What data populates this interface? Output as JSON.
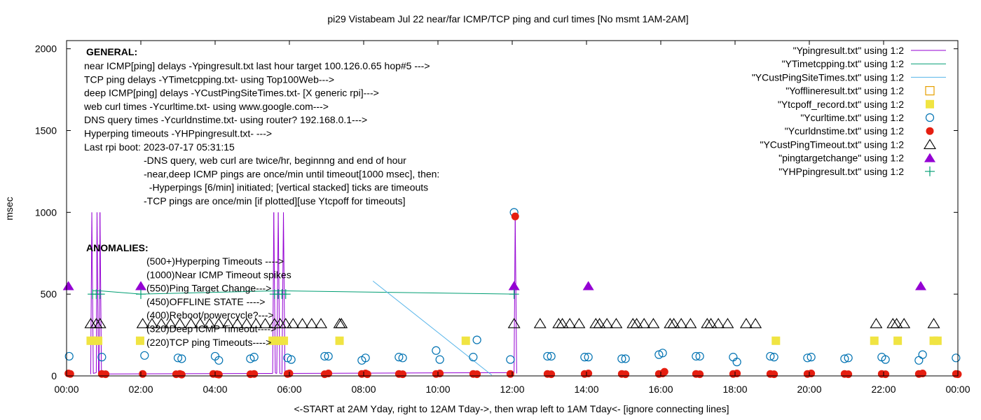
{
  "chart_data": {
    "type": "line",
    "title": "pi29 Vistabeam Jul 22  near/far ICMP/TCP ping and curl times [No msmt 1AM-2AM]",
    "xlabel": "<-START at 2AM Yday, right to 12AM Tday->, then wrap left to 1AM Tday<- [ignore connecting lines]",
    "ylabel": "msec",
    "xlim": [
      0,
      24
    ],
    "ylim": [
      0,
      2050
    ],
    "x_ticks": [
      {
        "v": 0,
        "label": "00:00"
      },
      {
        "v": 2,
        "label": "02:00"
      },
      {
        "v": 4,
        "label": "04:00"
      },
      {
        "v": 6,
        "label": "06:00"
      },
      {
        "v": 8,
        "label": "08:00"
      },
      {
        "v": 10,
        "label": "10:00"
      },
      {
        "v": 12,
        "label": "12:00"
      },
      {
        "v": 14,
        "label": "14:00"
      },
      {
        "v": 16,
        "label": "16:00"
      },
      {
        "v": 18,
        "label": "18:00"
      },
      {
        "v": 20,
        "label": "20:00"
      },
      {
        "v": 22,
        "label": "22:00"
      },
      {
        "v": 24,
        "label": "00:00"
      }
    ],
    "y_ticks": [
      {
        "v": 0,
        "label": "0"
      },
      {
        "v": 500,
        "label": "500"
      },
      {
        "v": 1000,
        "label": "1000"
      },
      {
        "v": 1500,
        "label": "1500"
      },
      {
        "v": 2000,
        "label": "2000"
      }
    ],
    "grid": false,
    "legend_position": "top-right",
    "series": [
      {
        "name": "\"Ypingresult.txt\" using 1:2",
        "style": "line",
        "color": "#9400d3",
        "points": [
          [
            0.65,
            10
          ],
          [
            0.68,
            1000
          ],
          [
            0.72,
            15
          ],
          [
            0.8,
            20
          ],
          [
            0.82,
            1000
          ],
          [
            0.86,
            15
          ],
          [
            0.88,
            20
          ],
          [
            0.9,
            1000
          ],
          [
            0.94,
            12
          ],
          [
            5.55,
            15
          ],
          [
            5.58,
            1000
          ],
          [
            5.62,
            18
          ],
          [
            5.66,
            15
          ],
          [
            5.7,
            1000
          ],
          [
            5.74,
            15
          ],
          [
            5.8,
            12
          ],
          [
            5.84,
            1000
          ],
          [
            5.88,
            15
          ],
          [
            12.05,
            20
          ],
          [
            12.08,
            970
          ],
          [
            12.12,
            15
          ]
        ]
      },
      {
        "name": "\"YTimetcpping.txt\" using 1:2",
        "style": "line",
        "color": "#009e73",
        "points": [
          [
            0.7,
            520
          ],
          [
            0.9,
            520
          ],
          [
            5.65,
            520
          ],
          [
            5.85,
            520
          ],
          [
            2.0,
            500
          ],
          [
            12.05,
            500
          ]
        ]
      },
      {
        "name": "\"YCustPingSiteTimes.txt\" using 1:2",
        "style": "line",
        "color": "#56b4e9",
        "points": [
          [
            8.25,
            580
          ],
          [
            11.45,
            5
          ]
        ]
      },
      {
        "name": "\"Yofflineresult.txt\" using 1:2",
        "style": "marker",
        "marker": "open-square",
        "color": "#e69f00",
        "points": []
      },
      {
        "name": "\"Ytcpoff_record.txt\" using 1:2",
        "style": "marker",
        "marker": "filled-square",
        "color": "#f0e442",
        "points": [
          [
            0.65,
            215
          ],
          [
            0.75,
            215
          ],
          [
            0.85,
            215
          ],
          [
            1.98,
            215
          ],
          [
            5.55,
            215
          ],
          [
            5.65,
            215
          ],
          [
            5.75,
            215
          ],
          [
            5.85,
            215
          ],
          [
            7.35,
            215
          ],
          [
            10.75,
            215
          ],
          [
            19.1,
            215
          ],
          [
            21.75,
            215
          ],
          [
            22.38,
            215
          ],
          [
            23.35,
            215
          ],
          [
            23.45,
            215
          ]
        ]
      },
      {
        "name": "\"Ycurltime.txt\" using 1:2",
        "style": "marker",
        "marker": "open-circle",
        "color": "#0072b2",
        "points": [
          [
            0.07,
            120
          ],
          [
            0.95,
            115
          ],
          [
            2.1,
            125
          ],
          [
            3.0,
            110
          ],
          [
            3.1,
            105
          ],
          [
            4.0,
            120
          ],
          [
            4.1,
            95
          ],
          [
            4.95,
            105
          ],
          [
            5.05,
            115
          ],
          [
            5.95,
            110
          ],
          [
            6.05,
            100
          ],
          [
            6.95,
            120
          ],
          [
            7.05,
            120
          ],
          [
            7.95,
            95
          ],
          [
            8.05,
            110
          ],
          [
            8.95,
            115
          ],
          [
            9.05,
            110
          ],
          [
            9.95,
            155
          ],
          [
            10.05,
            100
          ],
          [
            10.95,
            115
          ],
          [
            11.05,
            220
          ],
          [
            11.95,
            100
          ],
          [
            12.05,
            1000
          ],
          [
            12.95,
            120
          ],
          [
            13.05,
            120
          ],
          [
            13.95,
            115
          ],
          [
            14.05,
            115
          ],
          [
            14.95,
            105
          ],
          [
            15.05,
            105
          ],
          [
            15.95,
            130
          ],
          [
            16.05,
            140
          ],
          [
            16.95,
            120
          ],
          [
            17.05,
            120
          ],
          [
            17.95,
            115
          ],
          [
            18.05,
            85
          ],
          [
            18.95,
            120
          ],
          [
            19.05,
            115
          ],
          [
            19.95,
            110
          ],
          [
            20.05,
            115
          ],
          [
            20.95,
            105
          ],
          [
            21.05,
            110
          ],
          [
            21.95,
            115
          ],
          [
            22.05,
            100
          ],
          [
            22.95,
            95
          ],
          [
            23.05,
            130
          ],
          [
            23.95,
            110
          ]
        ]
      },
      {
        "name": "\"Ycurldnstime.txt\" using 1:2",
        "style": "marker",
        "marker": "filled-circle",
        "color": "#e51e10",
        "points": [
          [
            0.05,
            15
          ],
          [
            0.1,
            12
          ],
          [
            0.95,
            12
          ],
          [
            1.05,
            10
          ],
          [
            2.05,
            12
          ],
          [
            2.95,
            10
          ],
          [
            3.05,
            12
          ],
          [
            3.1,
            8
          ],
          [
            3.95,
            12
          ],
          [
            4.05,
            10
          ],
          [
            4.1,
            8
          ],
          [
            4.95,
            10
          ],
          [
            5.05,
            12
          ],
          [
            5.95,
            12
          ],
          [
            6.0,
            15
          ],
          [
            6.95,
            10
          ],
          [
            7.05,
            15
          ],
          [
            7.95,
            12
          ],
          [
            8.05,
            15
          ],
          [
            8.1,
            10
          ],
          [
            8.95,
            12
          ],
          [
            9.05,
            10
          ],
          [
            9.95,
            12
          ],
          [
            10.05,
            15
          ],
          [
            10.95,
            12
          ],
          [
            11.05,
            10
          ],
          [
            11.95,
            12
          ],
          [
            12.08,
            975
          ],
          [
            12.95,
            12
          ],
          [
            13.05,
            10
          ],
          [
            13.95,
            12
          ],
          [
            14.05,
            15
          ],
          [
            14.95,
            12
          ],
          [
            15.05,
            10
          ],
          [
            15.95,
            12
          ],
          [
            16.05,
            15
          ],
          [
            16.1,
            25
          ],
          [
            16.95,
            12
          ],
          [
            17.05,
            10
          ],
          [
            17.95,
            12
          ],
          [
            18.05,
            15
          ],
          [
            18.95,
            12
          ],
          [
            19.05,
            10
          ],
          [
            19.95,
            12
          ],
          [
            20.05,
            15
          ],
          [
            20.95,
            12
          ],
          [
            21.05,
            10
          ],
          [
            21.95,
            12
          ],
          [
            22.05,
            10
          ],
          [
            22.95,
            12
          ],
          [
            23.05,
            15
          ],
          [
            23.95,
            12
          ],
          [
            24.0,
            10
          ]
        ]
      },
      {
        "name": "\"YCustPingTimeout.txt\" using 1:2",
        "style": "marker",
        "marker": "open-triangle",
        "color": "#000000",
        "points": [
          [
            0.65,
            320
          ],
          [
            0.8,
            320
          ],
          [
            0.9,
            320
          ],
          [
            2.05,
            320
          ],
          [
            2.3,
            320
          ],
          [
            2.55,
            320
          ],
          [
            2.8,
            320
          ],
          [
            3.05,
            320
          ],
          [
            3.35,
            320
          ],
          [
            3.6,
            320
          ],
          [
            3.85,
            320
          ],
          [
            4.1,
            320
          ],
          [
            4.35,
            320
          ],
          [
            4.6,
            320
          ],
          [
            4.85,
            320
          ],
          [
            5.1,
            320
          ],
          [
            5.35,
            320
          ],
          [
            5.6,
            320
          ],
          [
            5.75,
            320
          ],
          [
            5.9,
            320
          ],
          [
            6.1,
            320
          ],
          [
            6.35,
            320
          ],
          [
            6.6,
            320
          ],
          [
            6.85,
            320
          ],
          [
            7.35,
            320
          ],
          [
            7.4,
            320
          ],
          [
            12.05,
            320
          ],
          [
            12.75,
            320
          ],
          [
            13.25,
            320
          ],
          [
            13.35,
            320
          ],
          [
            13.55,
            320
          ],
          [
            13.8,
            320
          ],
          [
            14.25,
            320
          ],
          [
            14.35,
            320
          ],
          [
            14.55,
            320
          ],
          [
            14.8,
            320
          ],
          [
            15.25,
            320
          ],
          [
            15.35,
            320
          ],
          [
            15.55,
            320
          ],
          [
            15.8,
            320
          ],
          [
            16.25,
            320
          ],
          [
            16.35,
            320
          ],
          [
            16.55,
            320
          ],
          [
            16.8,
            320
          ],
          [
            17.25,
            320
          ],
          [
            17.35,
            320
          ],
          [
            17.55,
            320
          ],
          [
            17.8,
            320
          ],
          [
            18.3,
            320
          ],
          [
            18.55,
            320
          ],
          [
            21.8,
            320
          ],
          [
            22.25,
            320
          ],
          [
            22.35,
            320
          ],
          [
            22.55,
            320
          ],
          [
            23.35,
            320
          ]
        ]
      },
      {
        "name": "\"pingtargetchange\" using 1:2",
        "style": "marker",
        "marker": "filled-triangle",
        "color": "#9400d3",
        "points": [
          [
            0.05,
            550
          ],
          [
            2.0,
            550
          ],
          [
            12.05,
            550
          ],
          [
            14.05,
            550
          ],
          [
            23.0,
            550
          ]
        ]
      },
      {
        "name": "\"YHPpingresult.txt\" using 1:2",
        "style": "marker",
        "marker": "plus",
        "color": "#009e73",
        "points": [
          [
            0.7,
            500
          ],
          [
            0.8,
            500
          ],
          [
            0.9,
            500
          ],
          [
            2.0,
            500
          ],
          [
            5.6,
            500
          ],
          [
            5.7,
            500
          ],
          [
            5.8,
            500
          ],
          [
            5.9,
            500
          ],
          [
            12.05,
            500
          ]
        ]
      }
    ],
    "annotations": {
      "general": {
        "heading": "GENERAL:",
        "lines": [
          "near ICMP[ping] delays -Ypingresult.txt last hour target 100.126.0.65 hop#5 --->",
          "TCP ping delays -YTimetcpping.txt- using Top100Web--->",
          "deep ICMP[ping] delays -YCustPingSiteTimes.txt- [X generic rpi]--->",
          "web curl times -Ycurltime.txt- using www.google.com--->",
          "DNS query times -Ycurldnstime.txt- using router? 192.168.0.1--->",
          "Hyperping timeouts -YHPpingresult.txt- --->",
          "Last rpi boot: 2023-07-17 05:31:15"
        ],
        "notes": [
          "-DNS query, web curl are twice/hr, beginnng and end of hour",
          "-near,deep ICMP pings are once/min until timeout[1000 msec], then:",
          "  -Hyperpings [6/min] initiated; [vertical stacked] ticks are timeouts",
          "-TCP pings are once/min [if plotted][use Ytcpoff for timeouts]"
        ]
      },
      "anomalies": {
        "heading": "ANOMALIES:",
        "lines": [
          "(500+)Hyperping Timeouts ---->",
          "(1000)Near ICMP Timeout spikes",
          "(550)Ping Target Change--->",
          "(450)OFFLINE STATE ---->",
          "(400)Reboot/powercycle?--->",
          "(320)Deep ICMP Timeout---->",
          "(220)TCP ping Timeouts---->"
        ]
      }
    }
  }
}
